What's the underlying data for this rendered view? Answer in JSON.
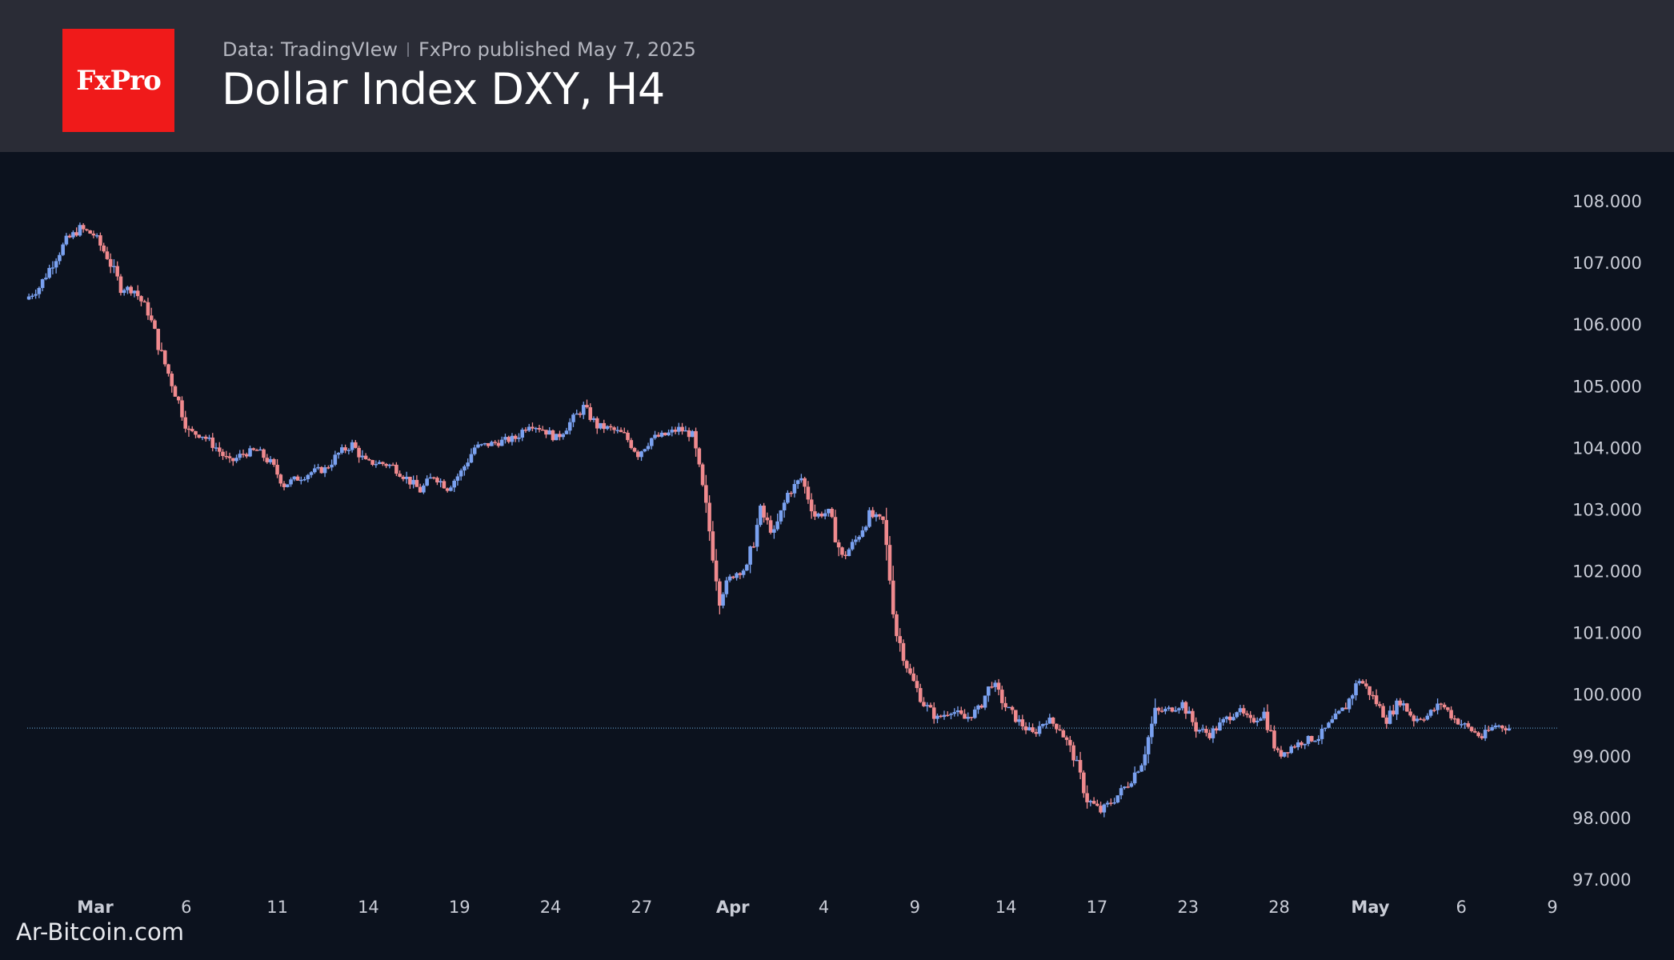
{
  "header": {
    "logo_text": "FxPro",
    "source": "Data: TradingVIew",
    "published": "FxPro published May 7, 2025",
    "title": "Dollar Index DXY, H4"
  },
  "watermark": "Ar-Bitcoin.com",
  "colors": {
    "header_bg": "#2a2c36",
    "chart_bg": "#0c121e",
    "logo_bg": "#f01a1a",
    "up_candle": "#7aa1f0",
    "down_candle": "#f08a8e",
    "axis_text": "#c9ccd6",
    "last_price_line": "#5a8fb8"
  },
  "chart_data": {
    "type": "candlestick",
    "title": "Dollar Index DXY, H4",
    "ylim": [
      96.75,
      108.5
    ],
    "yticks": [
      "108.000",
      "107.000",
      "106.000",
      "105.000",
      "104.000",
      "103.000",
      "102.000",
      "101.000",
      "100.000",
      "99.000",
      "98.000",
      "97.000"
    ],
    "xtick_labels": [
      {
        "label": "Mar",
        "bold": true
      },
      {
        "label": "6",
        "bold": false
      },
      {
        "label": "11",
        "bold": false
      },
      {
        "label": "14",
        "bold": false
      },
      {
        "label": "19",
        "bold": false
      },
      {
        "label": "24",
        "bold": false
      },
      {
        "label": "27",
        "bold": false
      },
      {
        "label": "Apr",
        "bold": true
      },
      {
        "label": "4",
        "bold": false
      },
      {
        "label": "9",
        "bold": false
      },
      {
        "label": "14",
        "bold": false
      },
      {
        "label": "17",
        "bold": false
      },
      {
        "label": "23",
        "bold": false
      },
      {
        "label": "28",
        "bold": false
      },
      {
        "label": "May",
        "bold": true
      },
      {
        "label": "6",
        "bold": false
      },
      {
        "label": "9",
        "bold": false
      }
    ],
    "last_price": 99.45,
    "price_path": [
      106.4,
      106.6,
      107.0,
      107.35,
      107.55,
      107.45,
      107.1,
      106.6,
      106.55,
      106.2,
      105.5,
      104.9,
      104.25,
      104.2,
      104.0,
      103.75,
      103.9,
      103.95,
      103.75,
      103.4,
      103.5,
      103.6,
      103.65,
      103.9,
      104.05,
      103.75,
      103.75,
      103.7,
      103.5,
      103.3,
      103.55,
      103.35,
      103.6,
      104.0,
      104.05,
      104.1,
      104.15,
      104.4,
      104.3,
      104.15,
      104.4,
      104.65,
      104.35,
      104.3,
      104.2,
      103.9,
      104.15,
      104.2,
      104.3,
      104.2,
      103.0,
      101.6,
      101.95,
      102.05,
      102.95,
      102.6,
      103.25,
      103.5,
      102.9,
      102.95,
      102.2,
      102.5,
      102.9,
      102.8,
      101.0,
      100.3,
      99.85,
      99.6,
      99.75,
      99.6,
      99.75,
      100.2,
      99.8,
      99.55,
      99.35,
      99.6,
      99.45,
      99.0,
      98.3,
      98.1,
      98.3,
      98.55,
      98.9,
      99.7,
      99.75,
      99.85,
      99.45,
      99.35,
      99.55,
      99.75,
      99.55,
      99.7,
      99.0,
      99.15,
      99.25,
      99.3,
      99.55,
      99.8,
      100.25,
      99.95,
      99.6,
      99.9,
      99.6,
      99.65,
      99.85,
      99.6,
      99.45,
      99.3,
      99.5,
      99.45
    ]
  }
}
